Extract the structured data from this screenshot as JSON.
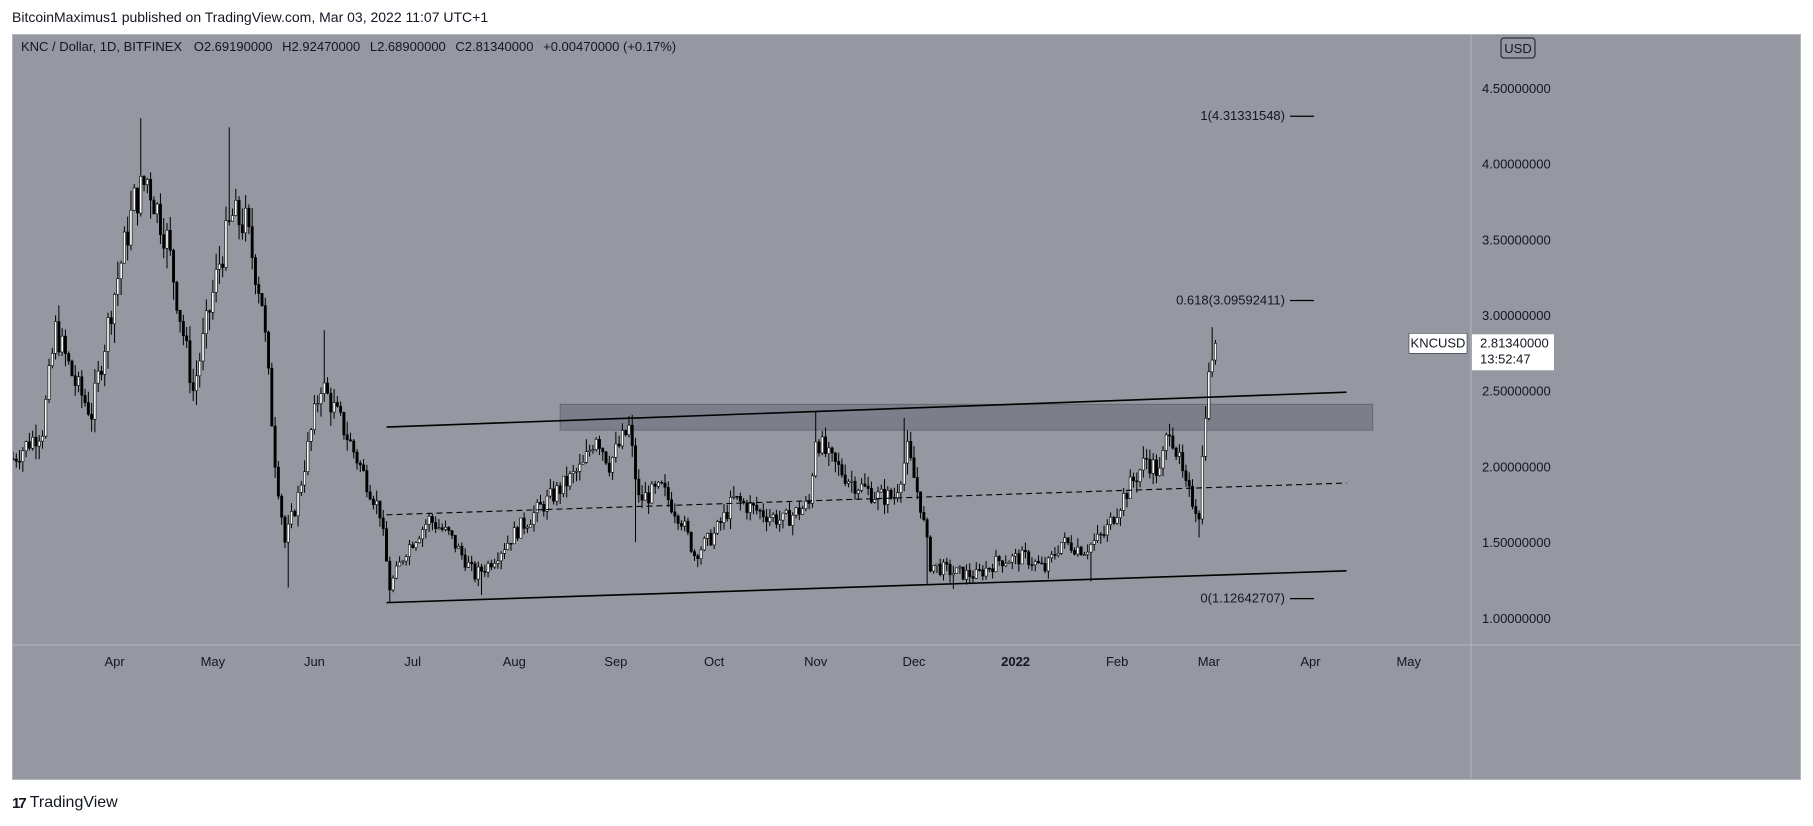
{
  "header": {
    "published_by": "BitcoinMaximus1 published on TradingView.com, Mar 03, 2022 11:07 UTC+1"
  },
  "footer": {
    "logo_mark": "17",
    "logo_text": "TradingView"
  },
  "colors": {
    "background": "#9598a1",
    "candle_up": "#ffffff",
    "candle_down": "#000000",
    "channel_line": "#000000",
    "zone_fill": "#787b86",
    "price_badge_bg": "#ffffff",
    "symbol_badge_bg": "#ffffff"
  },
  "chart_data": {
    "type": "candlestick",
    "symbol": "KNC / Dollar, 1D, BITFINEX",
    "ohlc_legend": {
      "o_label": "O",
      "o": "2.69190000",
      "h_label": "H",
      "h": "2.92470000",
      "l_label": "L",
      "l": "2.68900000",
      "c_label": "C",
      "c": "2.81340000",
      "change": "+0.00470000 (+0.17%)"
    },
    "currency": "USD",
    "y_ticks": [
      "4.50000000",
      "4.00000000",
      "3.50000000",
      "3.00000000",
      "2.50000000",
      "2.00000000",
      "1.50000000",
      "1.00000000"
    ],
    "y_tick_values": [
      4.5,
      4.0,
      3.5,
      3.0,
      2.5,
      2.0,
      1.5,
      1.0
    ],
    "x_ticks": [
      "Apr",
      "May",
      "Jun",
      "Jul",
      "Aug",
      "Sep",
      "Oct",
      "Nov",
      "Dec",
      "2022",
      "Feb",
      "Mar",
      "Apr",
      "May"
    ],
    "x_tick_dates": [
      "2021-04-01",
      "2021-05-01",
      "2021-06-01",
      "2021-07-01",
      "2021-08-01",
      "2021-09-01",
      "2021-10-01",
      "2021-11-01",
      "2021-12-01",
      "2022-01-01",
      "2022-02-01",
      "2022-03-01",
      "2022-04-01",
      "2022-05-01"
    ],
    "ylim": [
      0.82,
      4.85
    ],
    "xlim": [
      "2021-03-01",
      "2022-05-20"
    ],
    "last_price": {
      "symbol": "KNCUSD",
      "value": "2.81340000",
      "countdown": "13:52:47",
      "price": 2.8134
    },
    "fib_levels": [
      {
        "label": "1(4.31331548)",
        "value": 4.31331548
      },
      {
        "label": "0.618(3.09592411)",
        "value": 3.09592411
      },
      {
        "label": "0(1.12642707)",
        "value": 1.12642707
      }
    ],
    "channel": {
      "upper": {
        "start": [
          "2021-06-23",
          2.26
        ],
        "end": [
          "2022-04-12",
          2.49
        ]
      },
      "middle": {
        "start": [
          "2021-06-23",
          1.68
        ],
        "end": [
          "2022-04-12",
          1.89
        ]
      },
      "lower": {
        "start": [
          "2021-06-23",
          1.1
        ],
        "end": [
          "2022-04-12",
          1.31
        ]
      }
    },
    "resistance_zone": {
      "start": "2021-08-15",
      "end": "2022-04-20",
      "low": 2.24,
      "high": 2.41
    },
    "price_path": [
      [
        "2021-03-01",
        2.05
      ],
      [
        "2021-03-10",
        2.25
      ],
      [
        "2021-03-14",
        2.9
      ],
      [
        "2021-03-20",
        2.55
      ],
      [
        "2021-03-25",
        2.35
      ],
      [
        "2021-03-31",
        3.05
      ],
      [
        "2021-04-07",
        3.75
      ],
      [
        "2021-04-11",
        3.9
      ],
      [
        "2021-04-17",
        3.5
      ],
      [
        "2021-04-25",
        2.5
      ],
      [
        "2021-05-03",
        3.35
      ],
      [
        "2021-05-07",
        3.65
      ],
      [
        "2021-05-11",
        3.6
      ],
      [
        "2021-05-16",
        3.1
      ],
      [
        "2021-05-20",
        2.05
      ],
      [
        "2021-05-23",
        1.5
      ],
      [
        "2021-05-27",
        1.8
      ],
      [
        "2021-06-03",
        2.55
      ],
      [
        "2021-06-10",
        2.25
      ],
      [
        "2021-06-21",
        1.7
      ],
      [
        "2021-06-24",
        1.2
      ],
      [
        "2021-06-29",
        1.45
      ],
      [
        "2021-07-06",
        1.65
      ],
      [
        "2021-07-12",
        1.55
      ],
      [
        "2021-07-20",
        1.28
      ],
      [
        "2021-07-24",
        1.35
      ],
      [
        "2021-08-02",
        1.58
      ],
      [
        "2021-08-10",
        1.75
      ],
      [
        "2021-08-22",
        2.0
      ],
      [
        "2021-08-26",
        2.22
      ],
      [
        "2021-08-30",
        2.02
      ],
      [
        "2021-09-05",
        2.25
      ],
      [
        "2021-09-08",
        1.78
      ],
      [
        "2021-09-15",
        1.85
      ],
      [
        "2021-09-21",
        1.65
      ],
      [
        "2021-09-25",
        1.42
      ],
      [
        "2021-10-01",
        1.55
      ],
      [
        "2021-10-07",
        1.78
      ],
      [
        "2021-10-15",
        1.7
      ],
      [
        "2021-10-22",
        1.64
      ],
      [
        "2021-10-30",
        1.75
      ],
      [
        "2021-11-01",
        2.2
      ],
      [
        "2021-11-05",
        2.05
      ],
      [
        "2021-11-12",
        1.9
      ],
      [
        "2021-11-20",
        1.8
      ],
      [
        "2021-11-25",
        1.8
      ],
      [
        "2021-11-29",
        2.1
      ],
      [
        "2021-12-03",
        1.75
      ],
      [
        "2021-12-06",
        1.35
      ],
      [
        "2021-12-13",
        1.3
      ],
      [
        "2021-12-20",
        1.28
      ],
      [
        "2021-12-27",
        1.38
      ],
      [
        "2022-01-04",
        1.4
      ],
      [
        "2022-01-10",
        1.32
      ],
      [
        "2022-01-15",
        1.5
      ],
      [
        "2022-01-22",
        1.45
      ],
      [
        "2022-01-28",
        1.55
      ],
      [
        "2022-02-03",
        1.8
      ],
      [
        "2022-02-10",
        2.05
      ],
      [
        "2022-02-14",
        1.95
      ],
      [
        "2022-02-17",
        2.28
      ],
      [
        "2022-02-22",
        1.85
      ],
      [
        "2022-02-26",
        1.7
      ],
      [
        "2022-02-28",
        2.4
      ],
      [
        "2022-03-02",
        2.75
      ],
      [
        "2022-03-03",
        2.81
      ]
    ],
    "extreme_wicks": [
      {
        "date": "2021-04-09",
        "high": 4.3
      },
      {
        "date": "2021-05-06",
        "high": 4.24
      },
      {
        "date": "2021-05-24",
        "low": 1.2
      },
      {
        "date": "2021-06-04",
        "high": 2.9
      },
      {
        "date": "2021-06-24",
        "low": 1.1
      },
      {
        "date": "2021-07-22",
        "low": 1.15
      },
      {
        "date": "2021-09-06",
        "high": 2.34
      },
      {
        "date": "2021-09-07",
        "low": 1.5
      },
      {
        "date": "2021-11-01",
        "high": 2.36
      },
      {
        "date": "2021-11-28",
        "high": 2.32
      },
      {
        "date": "2021-12-05",
        "low": 1.22
      },
      {
        "date": "2021-12-13",
        "low": 1.19
      },
      {
        "date": "2022-01-24",
        "low": 1.24
      },
      {
        "date": "2022-02-26",
        "low": 1.53
      },
      {
        "date": "2022-03-02",
        "high": 2.92
      }
    ]
  }
}
